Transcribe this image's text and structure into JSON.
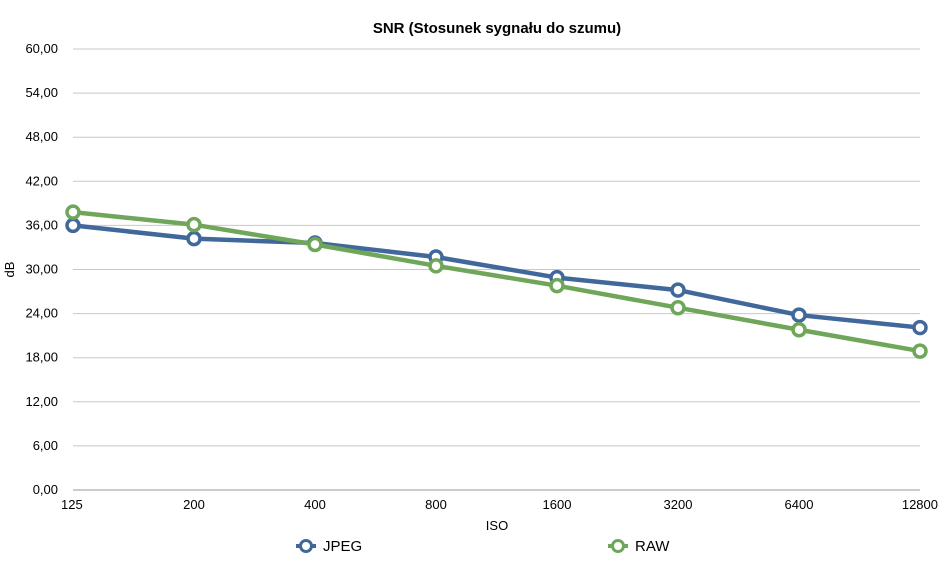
{
  "chart_data": {
    "type": "line",
    "title": "SNR (Stosunek sygnału do szumu)",
    "xlabel": "ISO",
    "ylabel": "dB",
    "categories": [
      "125",
      "200",
      "400",
      "800",
      "1600",
      "3200",
      "6400",
      "12800"
    ],
    "y_ticks": [
      "0,00",
      "6,00",
      "12,00",
      "18,00",
      "24,00",
      "30,00",
      "36,00",
      "42,00",
      "48,00",
      "54,00",
      "60,00"
    ],
    "ylim": [
      0,
      60
    ],
    "grid": true,
    "legend_position": "bottom",
    "series": [
      {
        "name": "JPEG",
        "color": "#41689a",
        "values": [
          36.0,
          34.2,
          33.6,
          31.7,
          28.9,
          27.2,
          23.8,
          22.1
        ]
      },
      {
        "name": "RAW",
        "color": "#6fa65a",
        "values": [
          37.8,
          36.1,
          33.4,
          30.5,
          27.8,
          24.8,
          21.8,
          18.9
        ]
      }
    ]
  }
}
